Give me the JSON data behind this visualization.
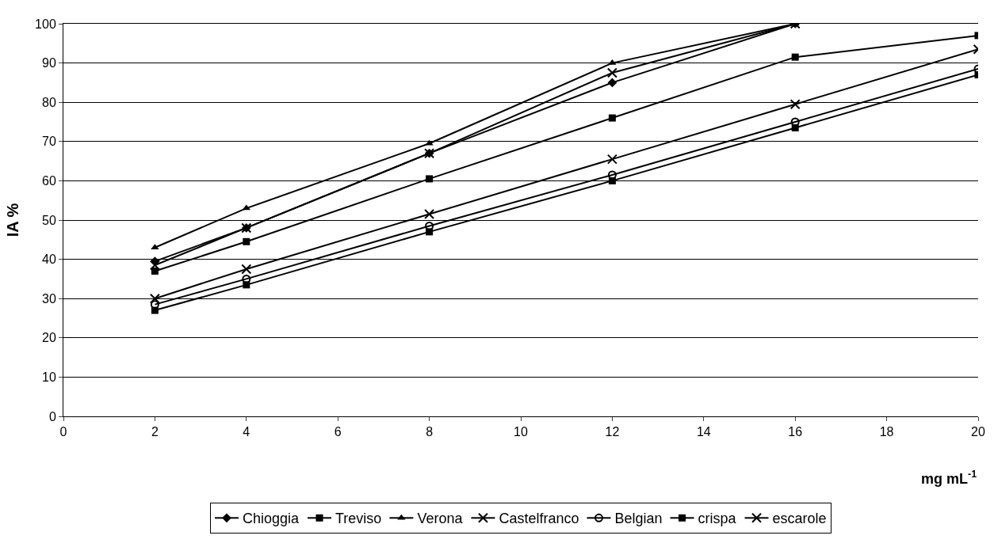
{
  "chart_data": {
    "type": "line",
    "xlabel": "mg mL$^{-1}$",
    "ylabel": "IA %",
    "x": [
      2,
      4,
      8,
      12,
      16,
      20
    ],
    "series": [
      {
        "name": "Chioggia",
        "color": "#000000",
        "marker": "diamond",
        "values": [
          39.5,
          48,
          67,
          85,
          100,
          null
        ]
      },
      {
        "name": "Treviso",
        "color": "#000000",
        "marker": "square",
        "values": [
          37,
          44.5,
          60.5,
          76,
          91.5,
          97
        ]
      },
      {
        "name": "Verona",
        "color": "#000000",
        "marker": "triangle",
        "values": [
          43,
          53,
          69.5,
          90,
          100,
          null
        ]
      },
      {
        "name": "Castelfranco",
        "color": "#000000",
        "marker": "cross",
        "values": [
          38.5,
          48,
          67,
          87.5,
          100,
          null
        ]
      },
      {
        "name": "Belgian",
        "color": "#000000",
        "marker": "circle",
        "values": [
          28.5,
          35,
          48.5,
          61.5,
          75,
          88.5
        ]
      },
      {
        "name": "crispa",
        "color": "#000000",
        "marker": "square",
        "values": [
          27,
          33.5,
          47,
          60,
          73.5,
          87
        ]
      },
      {
        "name": "escarole",
        "color": "#000000",
        "marker": "cross",
        "values": [
          30,
          37.5,
          51.5,
          65.5,
          79.5,
          93.5
        ]
      }
    ],
    "xlim": [
      0,
      20
    ],
    "xticks": [
      0,
      2,
      4,
      6,
      8,
      10,
      12,
      14,
      16,
      18,
      20
    ],
    "ylim": [
      0,
      100
    ],
    "yticks": [
      0,
      10,
      20,
      30,
      40,
      50,
      60,
      70,
      80,
      90,
      100
    ],
    "grid": "y",
    "legend": "bottom",
    "line_style": "solid"
  }
}
